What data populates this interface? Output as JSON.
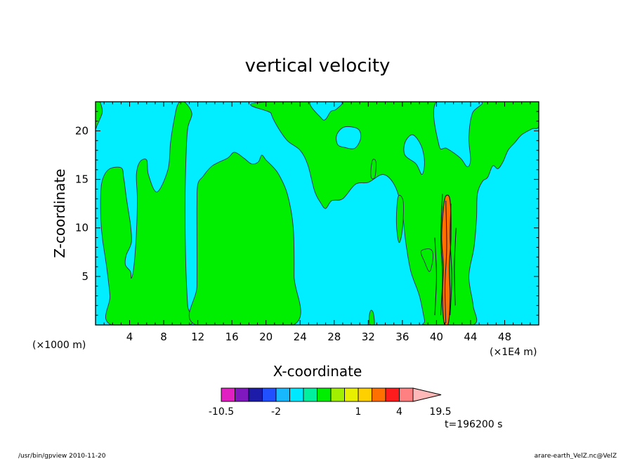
{
  "chart_data": {
    "type": "heatmap",
    "title": "vertical velocity",
    "xlabel": "X-coordinate",
    "ylabel": "Z-coordinate",
    "x_unit": "(×1000 m)",
    "x_unit_right": "(×1E4 m)",
    "xlim": [
      0,
      52
    ],
    "ylim": [
      0,
      23
    ],
    "x_ticks": [
      "4",
      "8",
      "12",
      "16",
      "20",
      "24",
      "28",
      "32",
      "36",
      "40",
      "44",
      "48"
    ],
    "y_ticks": [
      "5",
      "10",
      "15",
      "20"
    ],
    "time_label": "t=196200 s",
    "colorbar": {
      "levels": [
        -10.5,
        -7.5,
        -4.5,
        -3,
        -2,
        -1.5,
        -1,
        -0.5,
        0,
        0.5,
        1,
        1.5,
        2,
        4,
        8,
        12,
        19.5
      ],
      "tick_labels": [
        "-10.5",
        "-2",
        "1",
        "4",
        "19.5"
      ],
      "colors": [
        "#e020c0",
        "#8018c0",
        "#1c1ca8",
        "#2050ff",
        "#18b8ff",
        "#00e8ff",
        "#00f0a0",
        "#00ee00",
        "#a0f000",
        "#e8f000",
        "#ffd000",
        "#ff7000",
        "#ff1c1c",
        "#ff8080"
      ],
      "extend_color": "#ffb8b8"
    },
    "background_color": "#00eeff",
    "positive_color": "#00ee00",
    "updraft_core_color": "#ff7000",
    "contour_color": "#303050",
    "positive_regions": [
      {
        "name": "left-corner",
        "points": [
          [
            0,
            23
          ],
          [
            0.5,
            23
          ],
          [
            0.8,
            22
          ],
          [
            0.5,
            21.2
          ],
          [
            0.2,
            20.6
          ],
          [
            0,
            20.4
          ]
        ]
      },
      {
        "name": "left-column",
        "points": [
          [
            1.9,
            0
          ],
          [
            1.7,
            3
          ],
          [
            1.3,
            6
          ],
          [
            0.8,
            9
          ],
          [
            0.6,
            11.5
          ],
          [
            0.7,
            14.5
          ],
          [
            1.5,
            16
          ],
          [
            3,
            16.2
          ],
          [
            3.3,
            15.2
          ],
          [
            3.6,
            13.2
          ],
          [
            3.9,
            11.5
          ],
          [
            4.1,
            10.3
          ],
          [
            4.2,
            8.5
          ],
          [
            3.6,
            7.2
          ],
          [
            3.5,
            6.2
          ],
          [
            4.1,
            5.5
          ],
          [
            4.2,
            4.8
          ],
          [
            4.5,
            6
          ],
          [
            4.8,
            9.5
          ],
          [
            4.9,
            13
          ],
          [
            4.8,
            15.5
          ],
          [
            5.2,
            16.8
          ],
          [
            6,
            17
          ],
          [
            6.2,
            15.5
          ],
          [
            7.2,
            13.7
          ],
          [
            8.5,
            16
          ],
          [
            8.8,
            18.8
          ],
          [
            9.3,
            21.5
          ],
          [
            9.7,
            22.8
          ],
          [
            10.4,
            23
          ],
          [
            11.3,
            21.8
          ],
          [
            10.8,
            20.2
          ],
          [
            10.6,
            16.8
          ],
          [
            10.5,
            12
          ],
          [
            10.6,
            6
          ],
          [
            10.8,
            2
          ],
          [
            10.9,
            0
          ]
        ]
      },
      {
        "name": "central-block",
        "points": [
          [
            11.8,
            0
          ],
          [
            11.9,
            4
          ],
          [
            11.9,
            9
          ],
          [
            11.9,
            12.5
          ],
          [
            12,
            14.5
          ],
          [
            12.6,
            15.3
          ],
          [
            13.7,
            16.4
          ],
          [
            15.5,
            17.2
          ],
          [
            16.3,
            17.8
          ],
          [
            17.4,
            17.2
          ],
          [
            18.3,
            16.6
          ],
          [
            19.1,
            16.8
          ],
          [
            19.5,
            17.5
          ],
          [
            20,
            17
          ],
          [
            20.8,
            16.3
          ],
          [
            21.5,
            15.5
          ],
          [
            22.5,
            13.5
          ],
          [
            23.2,
            10
          ],
          [
            23.3,
            5
          ],
          [
            23.2,
            0
          ]
        ]
      },
      {
        "name": "upper-right-region",
        "points": [
          [
            20.5,
            23
          ],
          [
            20.6,
            21.8
          ],
          [
            21.3,
            20.5
          ],
          [
            22.5,
            19
          ],
          [
            24,
            18
          ],
          [
            24.9,
            16.5
          ],
          [
            25.7,
            13.8
          ],
          [
            26.4,
            12.6
          ],
          [
            27,
            12
          ],
          [
            27.7,
            12.8
          ],
          [
            29,
            13
          ],
          [
            30.5,
            14.5
          ],
          [
            32,
            14.7
          ],
          [
            33.8,
            15.5
          ],
          [
            35.2,
            14.2
          ],
          [
            36,
            11.5
          ],
          [
            36.4,
            8.5
          ],
          [
            37,
            5.5
          ],
          [
            38,
            3
          ],
          [
            38.6,
            0.5
          ],
          [
            38.8,
            0
          ],
          [
            44.3,
            0
          ],
          [
            44.3,
            2
          ],
          [
            43.8,
            5
          ],
          [
            44.4,
            8
          ],
          [
            44.7,
            11
          ],
          [
            44.8,
            13.5
          ],
          [
            45.4,
            14.8
          ],
          [
            46,
            15.2
          ],
          [
            46.6,
            16.4
          ],
          [
            47.2,
            16.1
          ],
          [
            47.8,
            16.8
          ],
          [
            48.4,
            18
          ],
          [
            49.2,
            18.8
          ],
          [
            50,
            19.6
          ],
          [
            51.2,
            20.2
          ],
          [
            52,
            20.5
          ],
          [
            52,
            23
          ]
        ]
      },
      {
        "name": "small-bottom-cell",
        "points": [
          [
            32.2,
            0
          ],
          [
            32.1,
            0.8
          ],
          [
            32.3,
            1.5
          ],
          [
            32.6,
            1.2
          ],
          [
            32.7,
            0
          ]
        ]
      }
    ],
    "negative_islands": [
      {
        "name": "island-a",
        "points": [
          [
            25.2,
            23
          ],
          [
            26.5,
            21.3
          ],
          [
            27,
            21.2
          ],
          [
            27.6,
            22
          ],
          [
            28.2,
            22.2
          ],
          [
            28.8,
            23
          ]
        ]
      },
      {
        "name": "island-b",
        "points": [
          [
            28.4,
            18.6
          ],
          [
            29.2,
            18.3
          ],
          [
            30.4,
            18.2
          ],
          [
            31.1,
            19.2
          ],
          [
            30.8,
            20.2
          ],
          [
            29.2,
            20.4
          ],
          [
            28.3,
            19.6
          ]
        ]
      },
      {
        "name": "island-c",
        "points": [
          [
            40.3,
            18.5
          ],
          [
            41.2,
            18.2
          ],
          [
            42.8,
            17.2
          ],
          [
            43.6,
            16.3
          ],
          [
            44,
            17
          ],
          [
            43.8,
            19.3
          ],
          [
            44.2,
            21.8
          ],
          [
            45.2,
            23
          ],
          [
            40,
            23
          ]
        ]
      },
      {
        "name": "island-d",
        "points": [
          [
            36.3,
            17.5
          ],
          [
            37.6,
            16.6
          ],
          [
            38.3,
            15.5
          ],
          [
            38.6,
            16.8
          ],
          [
            38.2,
            18.5
          ],
          [
            37.2,
            19.6
          ],
          [
            36.3,
            18.8
          ]
        ]
      }
    ],
    "small_positive_cells": [
      {
        "name": "cell-a",
        "points": [
          [
            32.3,
            15.8
          ],
          [
            32.5,
            17
          ],
          [
            32.9,
            16.8
          ],
          [
            32.8,
            15.3
          ],
          [
            32.4,
            15.1
          ]
        ]
      },
      {
        "name": "cell-b",
        "points": [
          [
            35.5,
            13.2
          ],
          [
            35.3,
            10.5
          ],
          [
            35.6,
            8.5
          ],
          [
            36,
            9.8
          ],
          [
            36.1,
            12.7
          ]
        ]
      },
      {
        "name": "cell-c",
        "points": [
          [
            38.2,
            7.6
          ],
          [
            38.6,
            6.5
          ],
          [
            39.2,
            5.5
          ],
          [
            39.6,
            7
          ],
          [
            39.3,
            7.8
          ]
        ]
      }
    ],
    "updraft_core": [
      [
        40.9,
        0.2
      ],
      [
        40.7,
        3
      ],
      [
        40.8,
        6
      ],
      [
        40.6,
        9
      ],
      [
        40.8,
        12
      ],
      [
        41.1,
        13.3
      ],
      [
        41.6,
        12.8
      ],
      [
        41.7,
        9
      ],
      [
        41.5,
        6
      ],
      [
        41.6,
        3
      ],
      [
        41.4,
        0.2
      ]
    ],
    "updraft_streaks": [
      [
        [
          40.5,
          1
        ],
        [
          40.7,
          5
        ],
        [
          40.5,
          9
        ],
        [
          40.7,
          13.5
        ]
      ],
      [
        [
          41.6,
          1
        ],
        [
          41.8,
          5
        ],
        [
          41.6,
          9
        ],
        [
          41.7,
          12.5
        ]
      ],
      [
        [
          41.1,
          0.2
        ],
        [
          41,
          4
        ],
        [
          41.2,
          8
        ],
        [
          41.1,
          12.8
        ]
      ],
      [
        [
          42.2,
          2
        ],
        [
          42.1,
          6
        ],
        [
          42.3,
          10
        ]
      ],
      [
        [
          39.8,
          1
        ],
        [
          40,
          5
        ],
        [
          39.8,
          9
        ]
      ]
    ],
    "footer_left": "/usr/bin/gpview   2010-11-20",
    "footer_right": "arare-earth_VelZ.nc@VelZ"
  }
}
